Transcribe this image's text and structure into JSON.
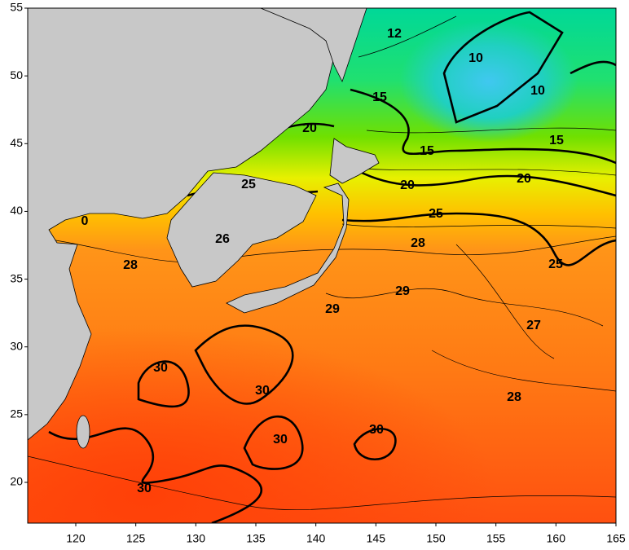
{
  "x_ticks": [
    120,
    125,
    130,
    135,
    140,
    145,
    150,
    155,
    160,
    165
  ],
  "y_ticks": [
    55,
    50,
    45,
    40,
    35,
    30,
    25,
    20
  ],
  "contour_labels": [
    12,
    10,
    10,
    15,
    15,
    15,
    20,
    20,
    20,
    25,
    25,
    25,
    26,
    28,
    28,
    28,
    29,
    29,
    27,
    30,
    30,
    30,
    30,
    30,
    0
  ]
}
